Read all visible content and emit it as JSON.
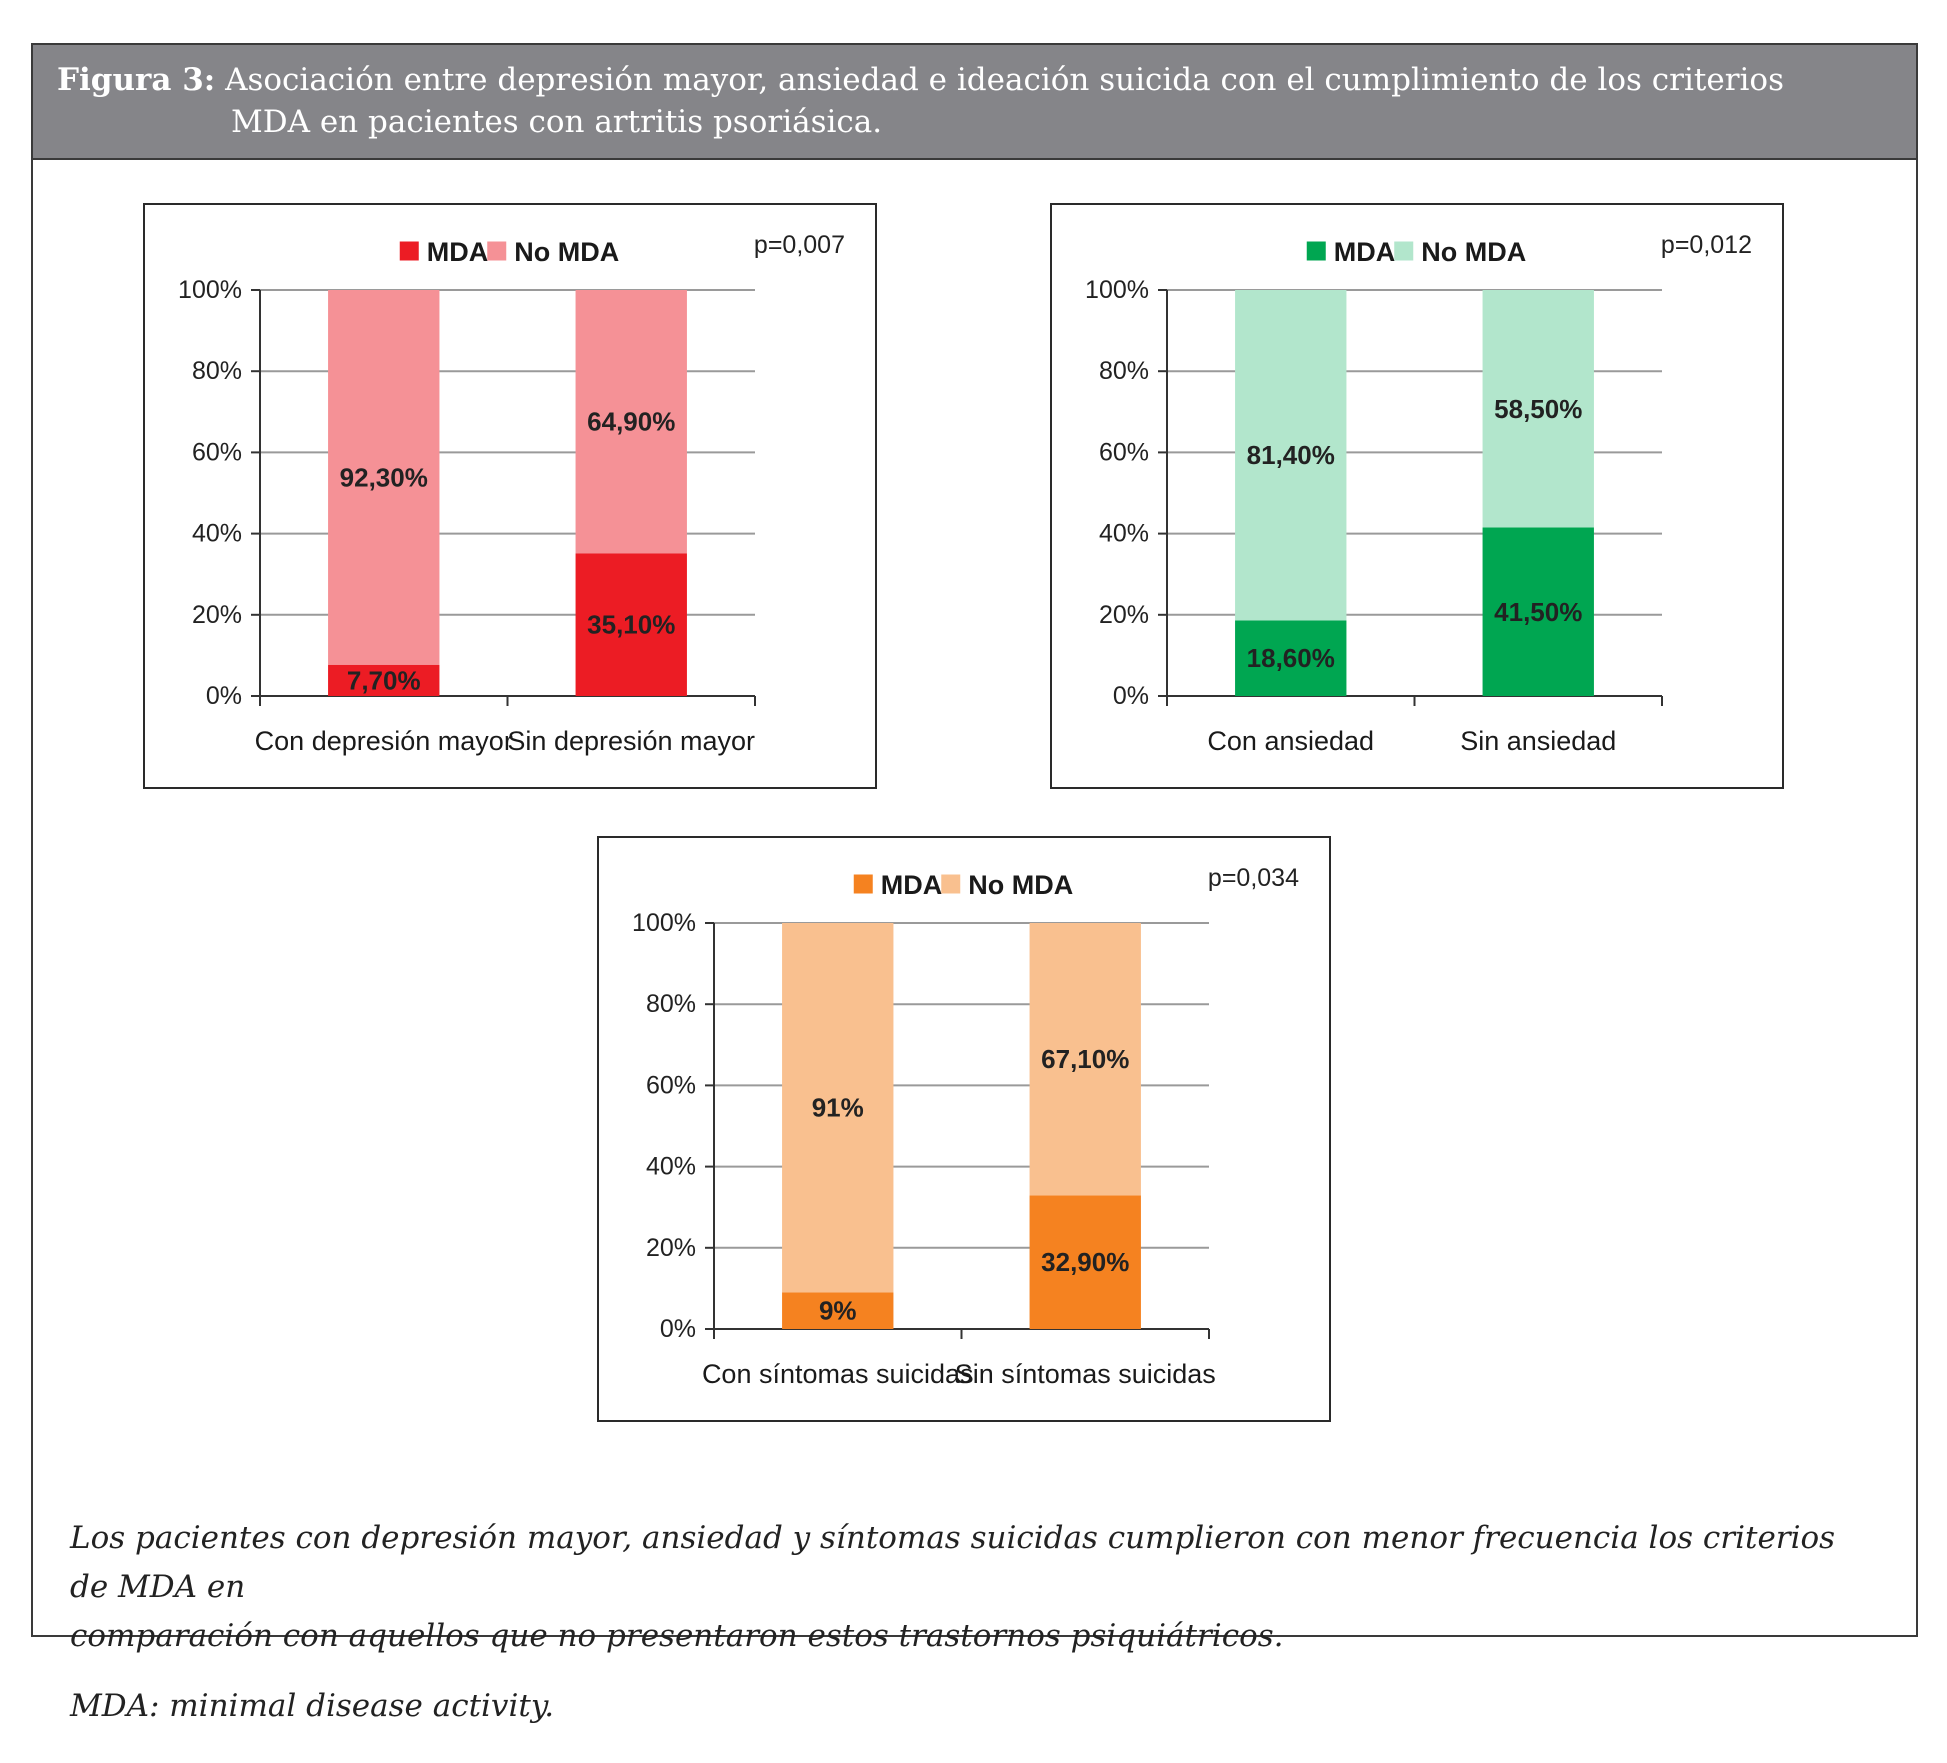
{
  "figure": {
    "label": "Figura 3:",
    "title_line1": "Asociación entre depresión mayor, ansiedad e ideación suicida con el cumplimiento de los criterios",
    "title_line2": "MDA en pacientes con artritis psoriásica."
  },
  "caption": {
    "line1": "Los pacientes con depresión mayor, ansiedad y síntomas suicidas cumplieron con menor frecuencia los criterios de MDA en",
    "line2": "comparación con aquellos que no presentaron estos trastornos psiquiátricos."
  },
  "footnote": "MDA: minimal disease activity.",
  "chart_data": [
    {
      "type": "bar",
      "stacked": true,
      "title": "",
      "pvalue": "p=0,007",
      "categories": [
        "Con depresión mayor",
        "Sin depresión mayor"
      ],
      "series": [
        {
          "name": "MDA",
          "values": [
            7.7,
            35.1
          ],
          "labels": [
            "7,70%",
            "35,10%"
          ],
          "color": "#ec1c24"
        },
        {
          "name": "No MDA",
          "values": [
            92.3,
            64.9
          ],
          "labels": [
            "92,30%",
            "64,90%"
          ],
          "color": "#f59196"
        }
      ],
      "ylim": [
        0,
        100
      ],
      "yticks": [
        "0%",
        "20%",
        "40%",
        "60%",
        "80%",
        "100%"
      ],
      "grid": true,
      "legend": "top"
    },
    {
      "type": "bar",
      "stacked": true,
      "title": "",
      "pvalue": "p=0,012",
      "categories": [
        "Con ansiedad",
        "Sin ansiedad"
      ],
      "series": [
        {
          "name": "MDA",
          "values": [
            18.6,
            41.5
          ],
          "labels": [
            "18,60%",
            "41,50%"
          ],
          "color": "#00a651"
        },
        {
          "name": "No MDA",
          "values": [
            81.4,
            58.5
          ],
          "labels": [
            "81,40%",
            "58,50%"
          ],
          "color": "#b2e6cc"
        }
      ],
      "ylim": [
        0,
        100
      ],
      "yticks": [
        "0%",
        "20%",
        "40%",
        "60%",
        "80%",
        "100%"
      ],
      "grid": true,
      "legend": "top"
    },
    {
      "type": "bar",
      "stacked": true,
      "title": "",
      "pvalue": "p=0,034",
      "categories": [
        "Con síntomas suicidas",
        "Sin síntomas suicidas"
      ],
      "series": [
        {
          "name": "MDA",
          "values": [
            9,
            32.9
          ],
          "labels": [
            "9%",
            "32,90%"
          ],
          "color": "#f58220"
        },
        {
          "name": "No MDA",
          "values": [
            91,
            67.1
          ],
          "labels": [
            "91%",
            "67,10%"
          ],
          "color": "#f9c08f"
        }
      ],
      "ylim": [
        0,
        100
      ],
      "yticks": [
        "0%",
        "20%",
        "40%",
        "60%",
        "80%",
        "100%"
      ],
      "grid": true,
      "legend": "top"
    }
  ]
}
